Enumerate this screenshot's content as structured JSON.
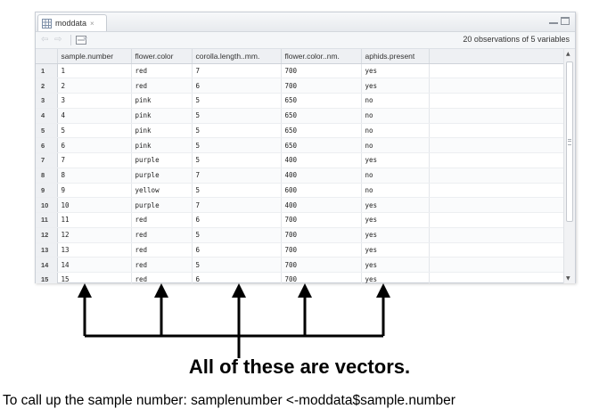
{
  "window": {
    "tab_label": "moddata",
    "tab_close": "×",
    "obs_info": "20 observations of 5 variables",
    "icons": [
      "grid-icon",
      "back-arrow-icon",
      "forward-arrow-icon",
      "filter-icon",
      "minimize-icon",
      "maximize-icon"
    ]
  },
  "table": {
    "columns": [
      "sample.number",
      "flower.color",
      "corolla.length..mm.",
      "flower.color..nm.",
      "aphids.present"
    ],
    "rows": [
      {
        "n": "1",
        "cells": [
          "1",
          "red",
          "7",
          "700",
          "yes"
        ]
      },
      {
        "n": "2",
        "cells": [
          "2",
          "red",
          "6",
          "700",
          "yes"
        ]
      },
      {
        "n": "3",
        "cells": [
          "3",
          "pink",
          "5",
          "650",
          "no"
        ]
      },
      {
        "n": "4",
        "cells": [
          "4",
          "pink",
          "5",
          "650",
          "no"
        ]
      },
      {
        "n": "5",
        "cells": [
          "5",
          "pink",
          "5",
          "650",
          "no"
        ]
      },
      {
        "n": "6",
        "cells": [
          "6",
          "pink",
          "5",
          "650",
          "no"
        ]
      },
      {
        "n": "7",
        "cells": [
          "7",
          "purple",
          "5",
          "400",
          "yes"
        ]
      },
      {
        "n": "8",
        "cells": [
          "8",
          "purple",
          "7",
          "400",
          "no"
        ]
      },
      {
        "n": "9",
        "cells": [
          "9",
          "yellow",
          "5",
          "600",
          "no"
        ]
      },
      {
        "n": "10",
        "cells": [
          "10",
          "purple",
          "7",
          "400",
          "yes"
        ]
      },
      {
        "n": "11",
        "cells": [
          "11",
          "red",
          "6",
          "700",
          "yes"
        ]
      },
      {
        "n": "12",
        "cells": [
          "12",
          "red",
          "5",
          "700",
          "yes"
        ]
      },
      {
        "n": "13",
        "cells": [
          "13",
          "red",
          "6",
          "700",
          "yes"
        ]
      },
      {
        "n": "14",
        "cells": [
          "14",
          "red",
          "5",
          "700",
          "yes"
        ]
      },
      {
        "n": "15",
        "cells": [
          "15",
          "red",
          "6",
          "700",
          "yes"
        ]
      }
    ]
  },
  "annotation": {
    "caption": "All of these are vectors.",
    "footnote": "To call up the sample number: samplenumber <-moddata$sample.number"
  }
}
